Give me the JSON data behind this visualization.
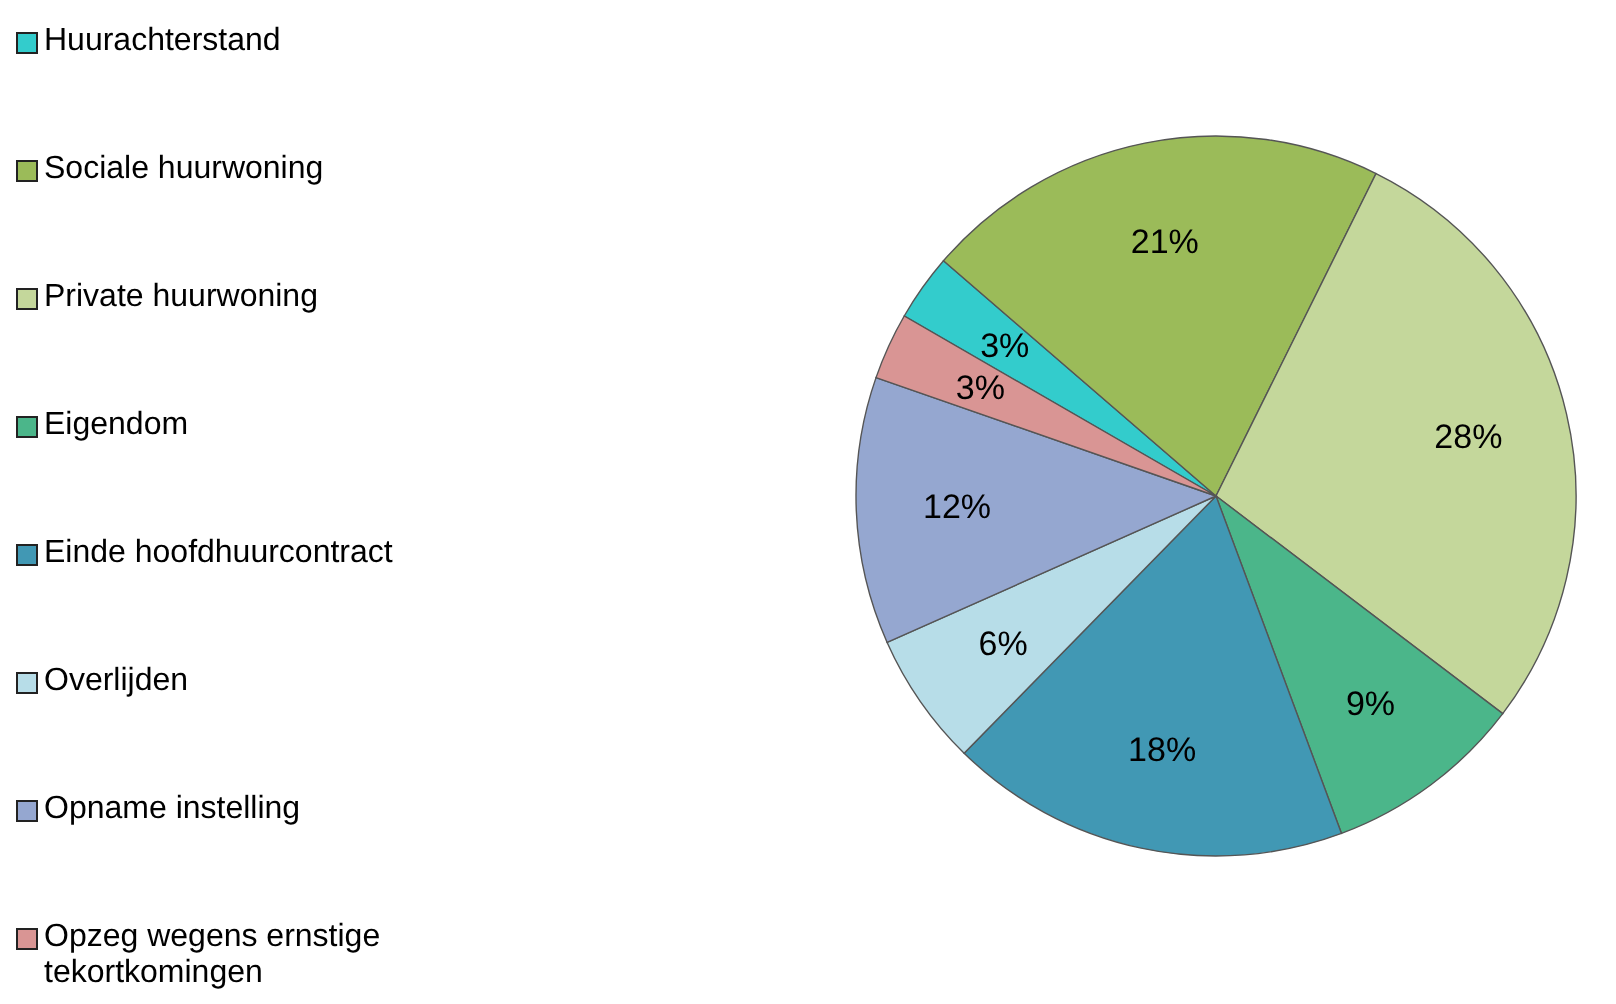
{
  "chart_data": {
    "type": "pie",
    "categories": [
      "Huurachterstand",
      "Sociale huurwoning",
      "Private huurwoning",
      "Eigendom",
      "Einde hoofdhuurcontract",
      "Overlijden",
      "Opname instelling",
      "Opzeg wegens ernstige tekortkomingen"
    ],
    "values": [
      3,
      21,
      28,
      9,
      18,
      6,
      12,
      3
    ],
    "value_labels": [
      "3%",
      "21%",
      "28%",
      "9%",
      "18%",
      "6%",
      "12%",
      "3%"
    ],
    "colors": [
      "#33cccc",
      "#9bbb59",
      "#c4d79b",
      "#4bb68a",
      "#4198b4",
      "#b7dde8",
      "#95a7d0",
      "#d99594"
    ],
    "legend": "left"
  }
}
